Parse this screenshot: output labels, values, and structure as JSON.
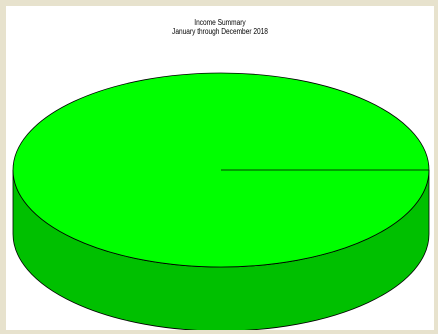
{
  "chart_data": {
    "type": "pie",
    "title": "Income Summary",
    "subtitle": "January through December 2018",
    "slices": [
      {
        "value": 100,
        "color": "#00ff00",
        "side_color": "#00c000"
      }
    ],
    "style": "3d"
  }
}
